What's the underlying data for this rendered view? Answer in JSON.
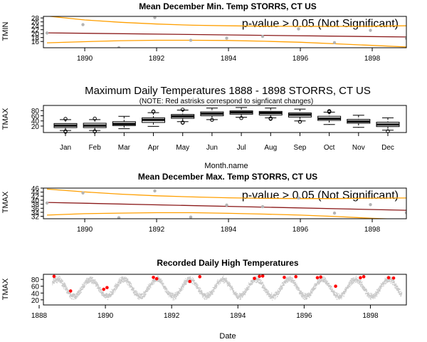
{
  "chart_data": [
    {
      "type": "scatter",
      "title": "Mean December Min. Temp STORRS, CT US",
      "ylabel": "TMIN",
      "annotation": "p-value > 0.05 (Not Significant)",
      "xlim": [
        1888.85,
        1898.95
      ],
      "ylim": [
        12.8,
        28.8
      ],
      "xticks": [
        1890,
        1892,
        1894,
        1896,
        1898
      ],
      "yticks": [
        16,
        18,
        20,
        22,
        24,
        26,
        28
      ],
      "points": {
        "x": [
          1888.95,
          1889.95,
          1890.95,
          1891.95,
          1892.95,
          1893.95,
          1894.95,
          1895.95,
          1896.95,
          1897.95,
          1898.95
        ],
        "y": [
          20.3,
          24.6,
          12.8,
          28.2,
          16.6,
          17.7,
          18.6,
          22.4,
          15.4,
          21.7,
          17.6
        ]
      },
      "trend": {
        "x": [
          1888.95,
          1898.95
        ],
        "y": [
          20.4,
          18.3
        ]
      },
      "band_upper": {
        "x": [
          1888.95,
          1890,
          1891,
          1892,
          1893,
          1894,
          1895,
          1896,
          1897,
          1898,
          1898.95
        ],
        "y": [
          29.0,
          27.0,
          25.8,
          24.9,
          24.3,
          24.0,
          23.8,
          23.7,
          23.7,
          23.8,
          24.0
        ]
      },
      "band_lower": {
        "x": [
          1888.95,
          1890,
          1891,
          1892,
          1893,
          1894,
          1895,
          1896,
          1897,
          1898,
          1898.95
        ],
        "y": [
          15.3,
          15.9,
          16.4,
          16.6,
          16.6,
          16.5,
          16.1,
          15.6,
          14.8,
          14.0,
          13.2
        ]
      }
    },
    {
      "type": "boxplot",
      "title": "Maximum Daily Temperatures 1888 - 1898 STORRS, CT US",
      "subtitle": "(NOTE: Red astrisks correspond to signficant changes)",
      "xlabel": "Month.name",
      "ylabel": "TMAX",
      "ylim": [
        -5,
        100
      ],
      "yticks": [
        20,
        40,
        60,
        80
      ],
      "categories": [
        "Jan",
        "Feb",
        "Mar",
        "Apr",
        "May",
        "Jun",
        "Jul",
        "Aug",
        "Sep",
        "Oct",
        "Nov",
        "Dec"
      ],
      "boxes": [
        {
          "lo": 3,
          "q1": 14,
          "med": 22,
          "q3": 30,
          "hi": 45,
          "out": [
            48,
            0,
            -2
          ]
        },
        {
          "lo": 3,
          "q1": 14,
          "med": 22,
          "q3": 31,
          "hi": 45,
          "out": [
            49,
            0,
            -1
          ]
        },
        {
          "lo": 10,
          "q1": 22,
          "med": 28,
          "q3": 37,
          "hi": 58,
          "out": []
        },
        {
          "lo": 19,
          "q1": 34,
          "med": 44,
          "q3": 52,
          "hi": 72,
          "out": [
            77,
            76
          ]
        },
        {
          "lo": 37,
          "q1": 50,
          "med": 58,
          "q3": 65,
          "hi": 82,
          "out": [
            33,
            34,
            84
          ]
        },
        {
          "lo": 45,
          "q1": 60,
          "med": 68,
          "q3": 75,
          "hi": 90,
          "out": [
            44
          ]
        },
        {
          "lo": 54,
          "q1": 66,
          "med": 73,
          "q3": 79,
          "hi": 92,
          "out": [
            51
          ]
        },
        {
          "lo": 52,
          "q1": 63,
          "med": 71,
          "q3": 77,
          "hi": 90,
          "out": [
            48,
            50
          ]
        },
        {
          "lo": 40,
          "q1": 55,
          "med": 64,
          "q3": 71,
          "hi": 86,
          "out": [
            37
          ]
        },
        {
          "lo": 26,
          "q1": 42,
          "med": 49,
          "q3": 58,
          "hi": 74,
          "out": [
            75,
            77,
            78
          ]
        },
        {
          "lo": 15,
          "q1": 31,
          "med": 38,
          "q3": 46,
          "hi": 62,
          "out": []
        },
        {
          "lo": 4,
          "q1": 18,
          "med": 26,
          "q3": 35,
          "hi": 52,
          "out": [
            0
          ]
        }
      ]
    },
    {
      "type": "scatter",
      "title": "Mean December Max. Temp STORRS, CT US",
      "ylabel": "TMAX",
      "annotation": "p-value > 0.05 (Not Significant)",
      "xlim": [
        1888.85,
        1898.95
      ],
      "ylim": [
        30.8,
        46.0
      ],
      "xticks": [
        1890,
        1892,
        1894,
        1896,
        1898
      ],
      "yticks": [
        32,
        34,
        36,
        38,
        40,
        42,
        44,
        46
      ],
      "points": {
        "x": [
          1888.95,
          1889.95,
          1890.95,
          1891.95,
          1892.95,
          1893.95,
          1894.95,
          1895.95,
          1896.95,
          1897.95,
          1898.95
        ],
        "y": [
          38.6,
          43.6,
          31.3,
          44.6,
          31.6,
          37.6,
          36.8,
          41.1,
          33.6,
          37.8,
          33.8
        ]
      },
      "trend": {
        "x": [
          1888.95,
          1898.95
        ],
        "y": [
          38.9,
          35.0
        ]
      },
      "band_upper": {
        "x": [
          1888.95,
          1890,
          1891,
          1892,
          1893,
          1894,
          1895,
          1896,
          1897,
          1898,
          1898.95
        ],
        "y": [
          45.5,
          44.1,
          43.0,
          42.2,
          41.6,
          41.2,
          40.9,
          40.8,
          40.8,
          41.0,
          41.1
        ]
      },
      "band_lower": {
        "x": [
          1888.95,
          1890,
          1891,
          1892,
          1893,
          1894,
          1895,
          1896,
          1897,
          1898,
          1898.95
        ],
        "y": [
          32.6,
          33.3,
          33.6,
          33.8,
          33.8,
          33.5,
          33.1,
          32.6,
          31.9,
          31.0,
          30.4
        ]
      }
    },
    {
      "type": "scatter",
      "title": "Recorded Daily High Temperatures",
      "xlabel": "Date",
      "ylabel": "TMAX",
      "xlim": [
        1888.0,
        1899.0
      ],
      "ylim": [
        5,
        95
      ],
      "xticks": [
        1888,
        1890,
        1892,
        1894,
        1896,
        1898
      ],
      "yticks": [
        20,
        40,
        60,
        80
      ],
      "date_range": [
        1888.4,
        1898.95
      ],
      "seasonal": {
        "mean": 55,
        "amplitude": 25,
        "peak_fraction": 0.55,
        "noise": 20
      },
      "highlight_color": "#ff0000",
      "highlights": [
        {
          "x": 1888.45,
          "y": 89
        },
        {
          "x": 1888.95,
          "y": 46
        },
        {
          "x": 1889.95,
          "y": 51
        },
        {
          "x": 1890.05,
          "y": 56
        },
        {
          "x": 1891.45,
          "y": 86
        },
        {
          "x": 1891.55,
          "y": 82
        },
        {
          "x": 1892.55,
          "y": 74
        },
        {
          "x": 1892.85,
          "y": 88
        },
        {
          "x": 1894.5,
          "y": 83
        },
        {
          "x": 1894.65,
          "y": 89
        },
        {
          "x": 1894.75,
          "y": 90
        },
        {
          "x": 1895.4,
          "y": 86
        },
        {
          "x": 1895.75,
          "y": 88
        },
        {
          "x": 1896.4,
          "y": 85
        },
        {
          "x": 1896.5,
          "y": 87
        },
        {
          "x": 1896.95,
          "y": 60
        },
        {
          "x": 1897.7,
          "y": 85
        },
        {
          "x": 1897.8,
          "y": 88
        },
        {
          "x": 1898.55,
          "y": 85
        },
        {
          "x": 1898.7,
          "y": 84
        }
      ]
    }
  ]
}
